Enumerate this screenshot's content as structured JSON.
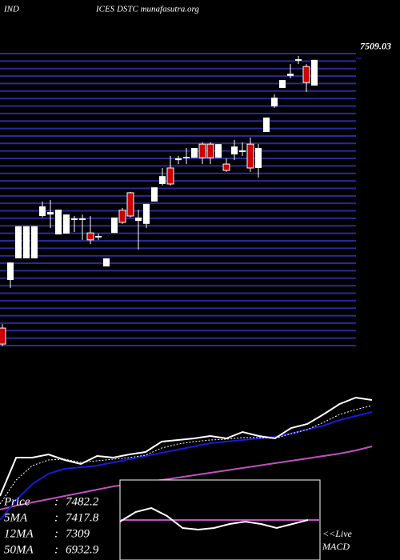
{
  "chart_data": [
    {
      "type": "candlestick",
      "title_parts": [
        "IND",
        "ICES DSTC munafasutra.org"
      ],
      "open": [
        6616,
        6775,
        6847,
        6847,
        6847,
        6987,
        6992,
        6926,
        6929,
        6974,
        6974,
        6931,
        6916,
        6820,
        6931,
        7006,
        7064,
        6971,
        6961,
        7035,
        7093,
        7146,
        7172,
        7180,
        7180,
        7225,
        7225,
        7180,
        7159,
        7191,
        7199,
        7225,
        7146,
        7265,
        7350,
        7411,
        7451,
        7501,
        7482,
        7419
      ],
      "high": [
        6629,
        6833,
        6953,
        6953,
        6953,
        7035,
        7040,
        7008,
        6992,
        6987,
        6992,
        6987,
        6929,
        6847,
        6982,
        7014,
        7067,
        7008,
        7027,
        7082,
        7146,
        7186,
        7186,
        7212,
        7212,
        7231,
        7231,
        7225,
        7178,
        7239,
        7231,
        7247,
        7225,
        7313,
        7390,
        7437,
        7490,
        7517,
        7490,
        7504
      ],
      "low": [
        6556,
        6749,
        6847,
        6847,
        6847,
        6982,
        6947,
        6926,
        6929,
        6934,
        6908,
        6894,
        6908,
        6820,
        6931,
        6961,
        6982,
        6876,
        6947,
        7035,
        7088,
        7088,
        7159,
        7159,
        7180,
        7159,
        7159,
        7180,
        7133,
        7172,
        7186,
        7133,
        7114,
        7265,
        7345,
        7411,
        7443,
        7490,
        7398,
        7419
      ],
      "close": [
        6563,
        6833,
        6953,
        6953,
        6953,
        7019,
        7000,
        7008,
        6992,
        6979,
        6979,
        6908,
        6921,
        6847,
        6982,
        6966,
        6987,
        6982,
        7027,
        7082,
        7119,
        7093,
        7178,
        7183,
        7212,
        7180,
        7180,
        7225,
        7138,
        7217,
        7204,
        7146,
        7212,
        7313,
        7379,
        7437,
        7458,
        7506,
        7429,
        7504
      ],
      "up_color": "#ffffff",
      "down_color": "#cc0000",
      "grid_color": "#2a2a9a",
      "ylim": [
        6550,
        7530
      ],
      "yticks": [
        7509.03
      ]
    },
    {
      "type": "line",
      "legend_separator": ":",
      "ylim": [
        0,
        260
      ],
      "series": [
        {
          "name": "Price",
          "legend_value": 7482.2,
          "color": "#ffffff",
          "dash": false,
          "values": [
            80,
            128,
            128,
            132,
            125,
            120,
            130,
            128,
            132,
            135,
            148,
            150,
            152,
            155,
            152,
            160,
            155,
            152,
            165,
            170,
            182,
            195,
            203,
            200
          ]
        },
        {
          "name": "5MA",
          "legend_value": 7417.8,
          "color": "#ffffff",
          "dash": true,
          "values": [
            70,
            100,
            118,
            125,
            126,
            122,
            124,
            126,
            128,
            131,
            140,
            145,
            148,
            150,
            151,
            153,
            153,
            152,
            158,
            163,
            172,
            182,
            188,
            193
          ]
        },
        {
          "name": "12MA",
          "legend_value": 7309,
          "color": "#1a1ad8",
          "dash": false,
          "values": [
            50,
            75,
            95,
            108,
            114,
            116,
            118,
            122,
            126,
            130,
            134,
            138,
            142,
            146,
            148,
            150,
            152,
            154,
            158,
            163,
            168,
            175,
            180,
            185
          ]
        },
        {
          "name": "50MA",
          "legend_value": 6932.9,
          "color": "#c050c0",
          "dash": false,
          "values": [
            63,
            68,
            72,
            76,
            80,
            84,
            88,
            92,
            95,
            98,
            100,
            103,
            106,
            109,
            112,
            115,
            118,
            121,
            124,
            127,
            130,
            133,
            137,
            142
          ]
        }
      ]
    },
    {
      "type": "macd",
      "label": "<<Live",
      "ylim": [
        -50,
        50
      ],
      "series": [
        {
          "name": "MACD",
          "color": "#ffffff",
          "values": [
            -2,
            10,
            15,
            5,
            -10,
            -12,
            -10,
            -5,
            -2,
            -5,
            -10,
            -5,
            0
          ]
        }
      ],
      "zero_color": "#c050c0"
    }
  ]
}
